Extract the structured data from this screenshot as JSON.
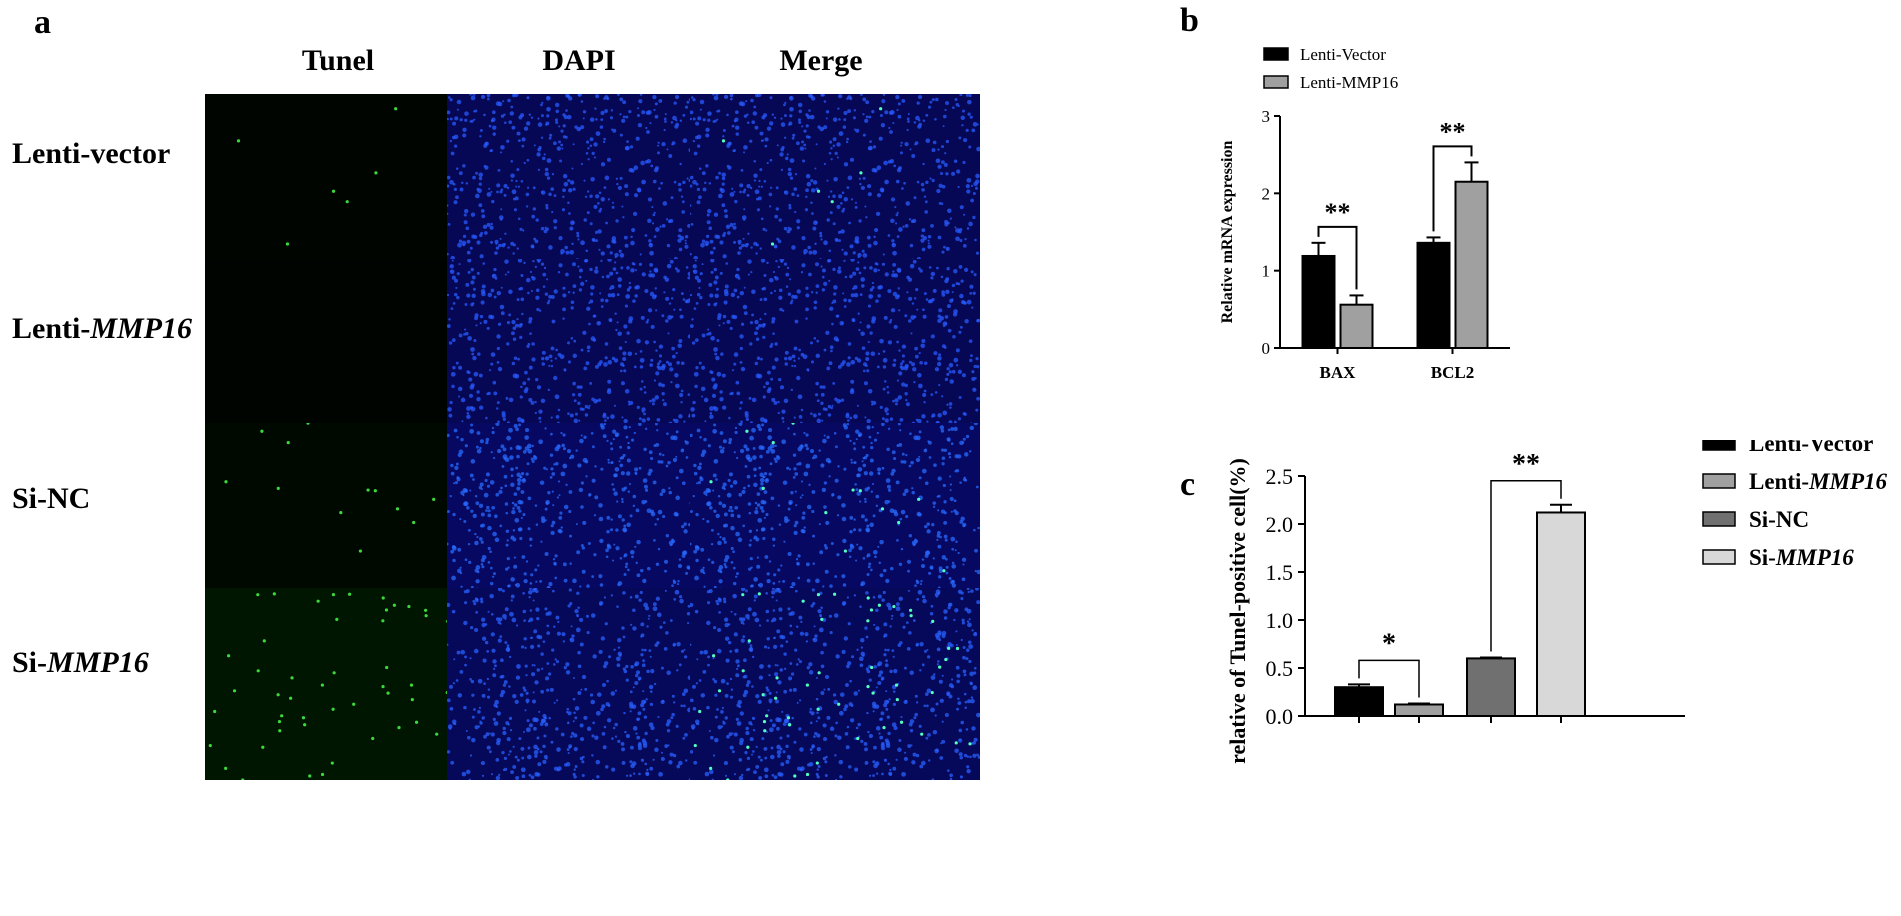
{
  "panel_a": {
    "letter": "a",
    "columns": [
      "Tunel",
      "DAPI",
      "Merge"
    ],
    "rows": [
      {
        "prefix": "Lenti-vector",
        "italic": "",
        "tunel_signal": 0.03,
        "dapi_brightness": 0.5
      },
      {
        "prefix": "Lenti-",
        "italic": "MMP16",
        "tunel_signal": 0.0,
        "dapi_brightness": 0.5
      },
      {
        "prefix": "Si-NC",
        "italic": "",
        "tunel_signal": 0.12,
        "dapi_brightness": 0.75
      },
      {
        "prefix": "Si-",
        "italic": "MMP16",
        "tunel_signal": 0.45,
        "dapi_brightness": 0.6
      }
    ]
  },
  "chart_data": [
    {
      "panel": "b",
      "type": "bar",
      "ylabel": "Relative mRNA expression",
      "ylim": [
        0,
        3
      ],
      "yticks": [
        "0",
        "1",
        "2",
        "3"
      ],
      "categories": [
        "BAX",
        "BCL2"
      ],
      "series": [
        {
          "name": "Lenti-Vector",
          "color": "#000000",
          "values": [
            1.19,
            1.36
          ],
          "errors": [
            0.17,
            0.07
          ]
        },
        {
          "name": "Lenti-MMP16",
          "color": "#a0a0a0",
          "values": [
            0.56,
            2.15
          ],
          "errors": [
            0.12,
            0.25
          ]
        }
      ],
      "significance": [
        "**",
        "**"
      ],
      "legend": "top-left"
    },
    {
      "panel": "c",
      "type": "bar",
      "ylabel": "relative  of Tunel-positive cell(%)",
      "ylim": [
        0,
        2.5
      ],
      "yticks": [
        "0.0",
        "0.5",
        "1.0",
        "1.5",
        "2.0",
        "2.5"
      ],
      "categories": [
        "Lenti-Vector",
        "Lenti-MMP16",
        "Si-NC",
        "Si-MMP16"
      ],
      "values": [
        0.3,
        0.12,
        0.6,
        2.12
      ],
      "errors": [
        0.03,
        0.01,
        0.01,
        0.08
      ],
      "colors": [
        "#000000",
        "#a0a0a0",
        "#707070",
        "#d8d8d8"
      ],
      "legend_entries": [
        {
          "prefix": "Lenti-Vector",
          "italic": ""
        },
        {
          "prefix": "Lenti-",
          "italic": "MMP16"
        },
        {
          "prefix": "Si-NC",
          "italic": ""
        },
        {
          "prefix": "Si-",
          "italic": "MMP16"
        }
      ],
      "significance": [
        {
          "between": [
            0,
            1
          ],
          "label": "*"
        },
        {
          "between": [
            2,
            3
          ],
          "label": "**"
        }
      ],
      "legend": "right"
    }
  ]
}
